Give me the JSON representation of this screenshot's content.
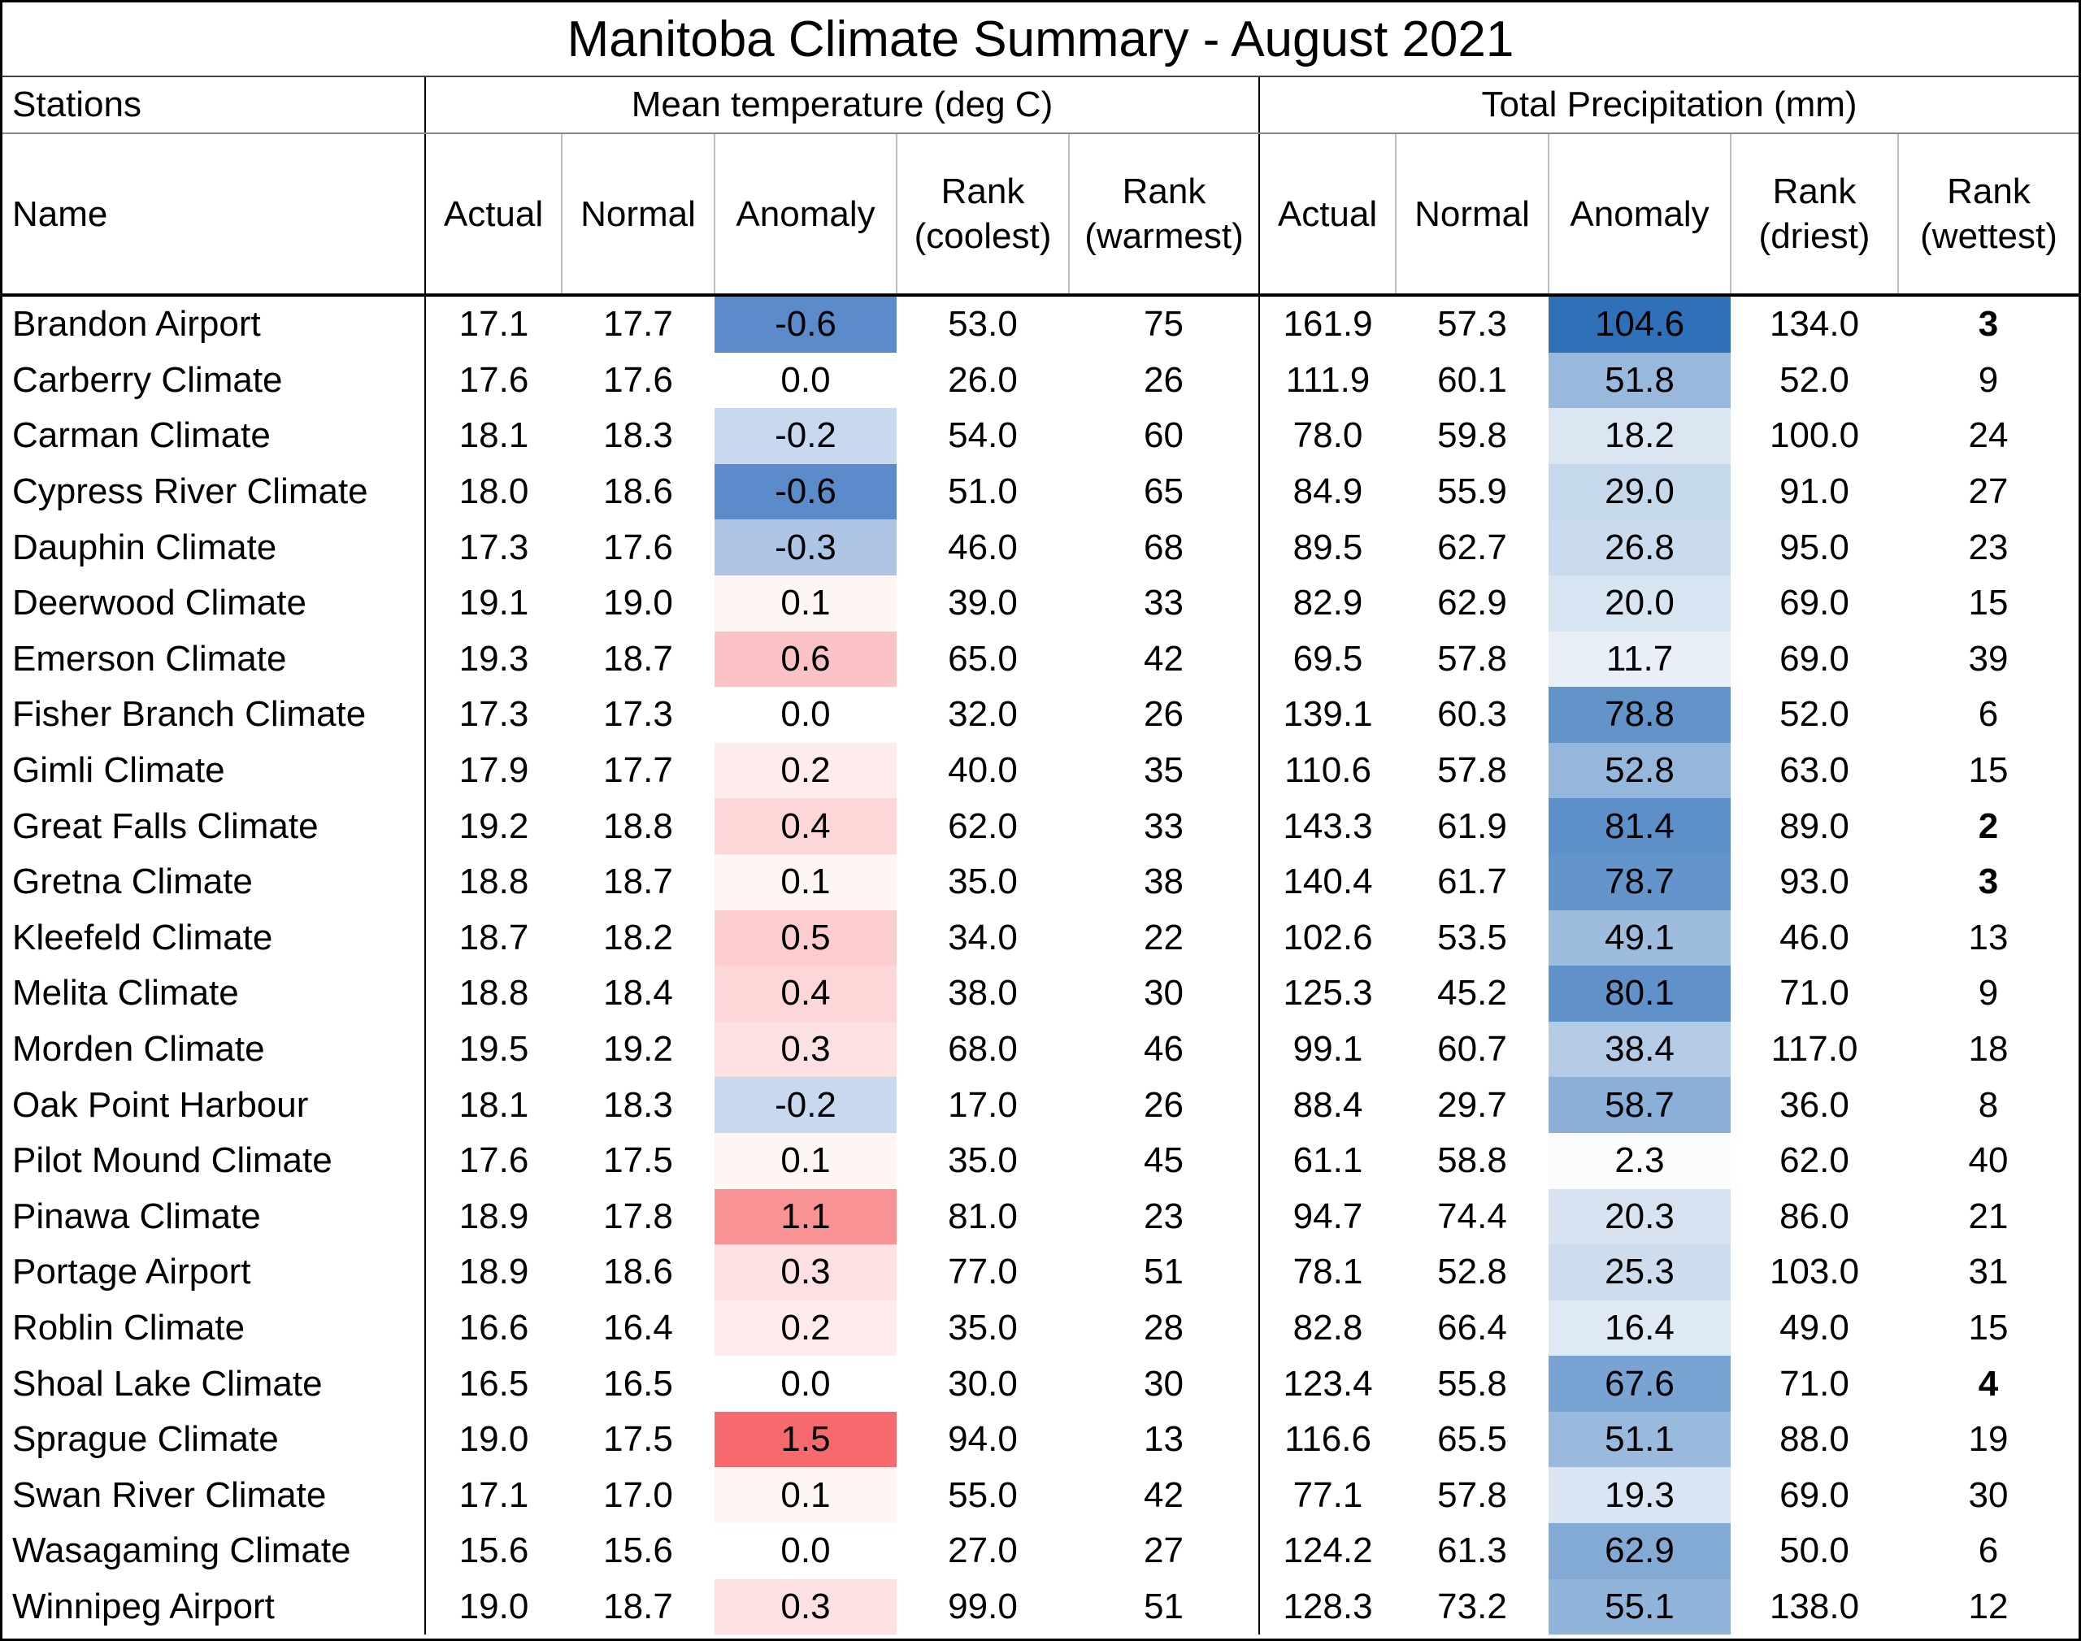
{
  "title": "Manitoba Climate Summary - August 2021",
  "groups": {
    "stations": "Stations",
    "temperature": "Mean temperature (deg C)",
    "precipitation": "Total Precipitation (mm)"
  },
  "columns": {
    "name": "Name",
    "temp_actual": "Actual",
    "temp_normal": "Normal",
    "temp_anomaly": "Anomaly",
    "rank_coolest_1": "Rank",
    "rank_coolest_2": "(coolest)",
    "rank_warmest_1": "Rank",
    "rank_warmest_2": "(warmest)",
    "precip_actual": "Actual",
    "precip_normal": "Normal",
    "precip_anomaly": "Anomaly",
    "rank_driest_1": "Rank",
    "rank_driest_2": "(driest)",
    "rank_wettest_1": "Rank",
    "rank_wettest_2": "(wettest)"
  },
  "colors": {
    "temp_warm_max": "#f66a6e",
    "temp_cool_max": "#5b8bcb",
    "precip_max": "#2f71b9",
    "neutral": "#ffffff"
  },
  "rows": [
    {
      "name": "Brandon Airport",
      "t_actual": "17.1",
      "t_normal": "17.7",
      "t_anom": "-0.6",
      "r_cool": "53.0",
      "r_warm": "75",
      "p_actual": "161.9",
      "p_normal": "57.3",
      "p_anom": "104.6",
      "r_dry": "134.0",
      "r_wet": "3"
    },
    {
      "name": "Carberry Climate",
      "t_actual": "17.6",
      "t_normal": "17.6",
      "t_anom": "0.0",
      "r_cool": "26.0",
      "r_warm": "26",
      "p_actual": "111.9",
      "p_normal": "60.1",
      "p_anom": "51.8",
      "r_dry": "52.0",
      "r_wet": "9"
    },
    {
      "name": "Carman Climate",
      "t_actual": "18.1",
      "t_normal": "18.3",
      "t_anom": "-0.2",
      "r_cool": "54.0",
      "r_warm": "60",
      "p_actual": "78.0",
      "p_normal": "59.8",
      "p_anom": "18.2",
      "r_dry": "100.0",
      "r_wet": "24"
    },
    {
      "name": "Cypress River Climate",
      "t_actual": "18.0",
      "t_normal": "18.6",
      "t_anom": "-0.6",
      "r_cool": "51.0",
      "r_warm": "65",
      "p_actual": "84.9",
      "p_normal": "55.9",
      "p_anom": "29.0",
      "r_dry": "91.0",
      "r_wet": "27"
    },
    {
      "name": "Dauphin Climate",
      "t_actual": "17.3",
      "t_normal": "17.6",
      "t_anom": "-0.3",
      "r_cool": "46.0",
      "r_warm": "68",
      "p_actual": "89.5",
      "p_normal": "62.7",
      "p_anom": "26.8",
      "r_dry": "95.0",
      "r_wet": "23"
    },
    {
      "name": "Deerwood Climate",
      "t_actual": "19.1",
      "t_normal": "19.0",
      "t_anom": "0.1",
      "r_cool": "39.0",
      "r_warm": "33",
      "p_actual": "82.9",
      "p_normal": "62.9",
      "p_anom": "20.0",
      "r_dry": "69.0",
      "r_wet": "15"
    },
    {
      "name": "Emerson Climate",
      "t_actual": "19.3",
      "t_normal": "18.7",
      "t_anom": "0.6",
      "r_cool": "65.0",
      "r_warm": "42",
      "p_actual": "69.5",
      "p_normal": "57.8",
      "p_anom": "11.7",
      "r_dry": "69.0",
      "r_wet": "39"
    },
    {
      "name": "Fisher Branch Climate",
      "t_actual": "17.3",
      "t_normal": "17.3",
      "t_anom": "0.0",
      "r_cool": "32.0",
      "r_warm": "26",
      "p_actual": "139.1",
      "p_normal": "60.3",
      "p_anom": "78.8",
      "r_dry": "52.0",
      "r_wet": "6"
    },
    {
      "name": "Gimli Climate",
      "t_actual": "17.9",
      "t_normal": "17.7",
      "t_anom": "0.2",
      "r_cool": "40.0",
      "r_warm": "35",
      "p_actual": "110.6",
      "p_normal": "57.8",
      "p_anom": "52.8",
      "r_dry": "63.0",
      "r_wet": "15"
    },
    {
      "name": "Great Falls Climate",
      "t_actual": "19.2",
      "t_normal": "18.8",
      "t_anom": "0.4",
      "r_cool": "62.0",
      "r_warm": "33",
      "p_actual": "143.3",
      "p_normal": "61.9",
      "p_anom": "81.4",
      "r_dry": "89.0",
      "r_wet": "2"
    },
    {
      "name": "Gretna Climate",
      "t_actual": "18.8",
      "t_normal": "18.7",
      "t_anom": "0.1",
      "r_cool": "35.0",
      "r_warm": "38",
      "p_actual": "140.4",
      "p_normal": "61.7",
      "p_anom": "78.7",
      "r_dry": "93.0",
      "r_wet": "3"
    },
    {
      "name": "Kleefeld Climate",
      "t_actual": "18.7",
      "t_normal": "18.2",
      "t_anom": "0.5",
      "r_cool": "34.0",
      "r_warm": "22",
      "p_actual": "102.6",
      "p_normal": "53.5",
      "p_anom": "49.1",
      "r_dry": "46.0",
      "r_wet": "13"
    },
    {
      "name": "Melita Climate",
      "t_actual": "18.8",
      "t_normal": "18.4",
      "t_anom": "0.4",
      "r_cool": "38.0",
      "r_warm": "30",
      "p_actual": "125.3",
      "p_normal": "45.2",
      "p_anom": "80.1",
      "r_dry": "71.0",
      "r_wet": "9"
    },
    {
      "name": "Morden Climate",
      "t_actual": "19.5",
      "t_normal": "19.2",
      "t_anom": "0.3",
      "r_cool": "68.0",
      "r_warm": "46",
      "p_actual": "99.1",
      "p_normal": "60.7",
      "p_anom": "38.4",
      "r_dry": "117.0",
      "r_wet": "18"
    },
    {
      "name": "Oak Point Harbour",
      "t_actual": "18.1",
      "t_normal": "18.3",
      "t_anom": "-0.2",
      "r_cool": "17.0",
      "r_warm": "26",
      "p_actual": "88.4",
      "p_normal": "29.7",
      "p_anom": "58.7",
      "r_dry": "36.0",
      "r_wet": "8"
    },
    {
      "name": "Pilot Mound Climate",
      "t_actual": "17.6",
      "t_normal": "17.5",
      "t_anom": "0.1",
      "r_cool": "35.0",
      "r_warm": "45",
      "p_actual": "61.1",
      "p_normal": "58.8",
      "p_anom": "2.3",
      "r_dry": "62.0",
      "r_wet": "40"
    },
    {
      "name": "Pinawa Climate",
      "t_actual": "18.9",
      "t_normal": "17.8",
      "t_anom": "1.1",
      "r_cool": "81.0",
      "r_warm": "23",
      "p_actual": "94.7",
      "p_normal": "74.4",
      "p_anom": "20.3",
      "r_dry": "86.0",
      "r_wet": "21"
    },
    {
      "name": "Portage Airport",
      "t_actual": "18.9",
      "t_normal": "18.6",
      "t_anom": "0.3",
      "r_cool": "77.0",
      "r_warm": "51",
      "p_actual": "78.1",
      "p_normal": "52.8",
      "p_anom": "25.3",
      "r_dry": "103.0",
      "r_wet": "31"
    },
    {
      "name": "Roblin Climate",
      "t_actual": "16.6",
      "t_normal": "16.4",
      "t_anom": "0.2",
      "r_cool": "35.0",
      "r_warm": "28",
      "p_actual": "82.8",
      "p_normal": "66.4",
      "p_anom": "16.4",
      "r_dry": "49.0",
      "r_wet": "15"
    },
    {
      "name": "Shoal Lake Climate",
      "t_actual": "16.5",
      "t_normal": "16.5",
      "t_anom": "0.0",
      "r_cool": "30.0",
      "r_warm": "30",
      "p_actual": "123.4",
      "p_normal": "55.8",
      "p_anom": "67.6",
      "r_dry": "71.0",
      "r_wet": "4"
    },
    {
      "name": "Sprague Climate",
      "t_actual": "19.0",
      "t_normal": "17.5",
      "t_anom": "1.5",
      "r_cool": "94.0",
      "r_warm": "13",
      "p_actual": "116.6",
      "p_normal": "65.5",
      "p_anom": "51.1",
      "r_dry": "88.0",
      "r_wet": "19"
    },
    {
      "name": "Swan River Climate",
      "t_actual": "17.1",
      "t_normal": "17.0",
      "t_anom": "0.1",
      "r_cool": "55.0",
      "r_warm": "42",
      "p_actual": "77.1",
      "p_normal": "57.8",
      "p_anom": "19.3",
      "r_dry": "69.0",
      "r_wet": "30"
    },
    {
      "name": "Wasagaming Climate",
      "t_actual": "15.6",
      "t_normal": "15.6",
      "t_anom": "0.0",
      "r_cool": "27.0",
      "r_warm": "27",
      "p_actual": "124.2",
      "p_normal": "61.3",
      "p_anom": "62.9",
      "r_dry": "50.0",
      "r_wet": "6"
    },
    {
      "name": "Winnipeg Airport",
      "t_actual": "19.0",
      "t_normal": "18.7",
      "t_anom": "0.3",
      "r_cool": "99.0",
      "r_warm": "51",
      "p_actual": "128.3",
      "p_normal": "73.2",
      "p_anom": "55.1",
      "r_dry": "138.0",
      "r_wet": "12"
    }
  ]
}
